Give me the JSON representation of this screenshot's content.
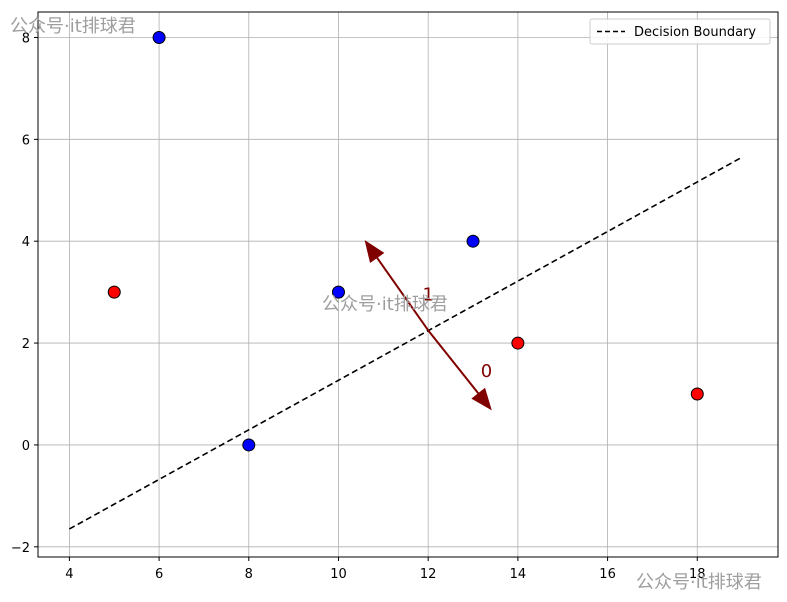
{
  "chart_data": {
    "type": "scatter",
    "title": "",
    "xlabel": "",
    "ylabel": "",
    "xlim": [
      3.3,
      19.8
    ],
    "ylim": [
      -2.2,
      8.5
    ],
    "grid": true,
    "x_ticks": [
      4,
      6,
      8,
      10,
      12,
      14,
      16,
      18
    ],
    "y_ticks": [
      -2,
      0,
      2,
      4,
      6,
      8
    ],
    "y_tick_labels": [
      "−2",
      "0",
      "2",
      "4",
      "6",
      "8"
    ],
    "series": [
      {
        "class": 1,
        "color": "#0000ff",
        "points": [
          [
            6,
            8
          ],
          [
            8,
            0
          ],
          [
            10,
            3
          ],
          [
            13,
            4
          ]
        ]
      },
      {
        "class": 0,
        "color": "#ff0000",
        "points": [
          [
            5,
            3
          ],
          [
            14,
            2
          ],
          [
            18,
            1
          ]
        ]
      }
    ],
    "decision_boundary": {
      "name": "Decision Boundary",
      "style": "dashed",
      "color": "#000000",
      "x": [
        4,
        19
      ],
      "y": [
        -1.65,
        5.65
      ]
    },
    "direction_arrows": [
      {
        "label": "1",
        "color": "#800000",
        "from": [
          12,
          2.25
        ],
        "to": [
          10.6,
          4.0
        ],
        "label_at": [
          12,
          2.95
        ]
      },
      {
        "label": "0",
        "color": "#800000",
        "from": [
          12,
          2.25
        ],
        "to": [
          13.4,
          0.7
        ],
        "label_at": [
          13.3,
          1.45
        ]
      }
    ],
    "legend": {
      "placement": "top-right",
      "entries": [
        "Decision Boundary"
      ]
    }
  },
  "watermarks": [
    "公众号·it排球君",
    "公众号·it排球君",
    "公众号·it排球君"
  ]
}
